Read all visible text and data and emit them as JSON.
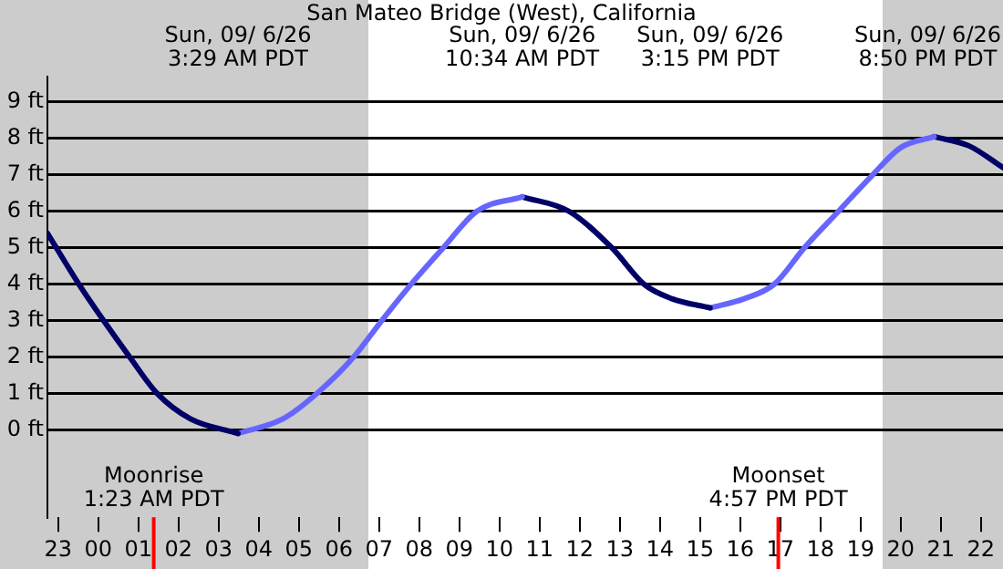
{
  "chart_data": {
    "type": "line",
    "title": "San Mateo Bridge (West), California",
    "xlim": [
      "--09-05T22:44",
      "--09-06T22:33"
    ],
    "ylim": [
      -2.4,
      9.7
    ],
    "xticks": [
      {
        "value": "--09-05T23:00",
        "label": "23"
      },
      {
        "value": "--09-06T00:00",
        "label": "00"
      },
      {
        "value": "--09-06T01:00",
        "label": "01"
      },
      {
        "value": "--09-06T02:00",
        "label": "02"
      },
      {
        "value": "--09-06T03:00",
        "label": "03"
      },
      {
        "value": "--09-06T04:00",
        "label": "04"
      },
      {
        "value": "--09-06T05:00",
        "label": "05"
      },
      {
        "value": "--09-06T06:00",
        "label": "06"
      },
      {
        "value": "--09-06T07:00",
        "label": "07"
      },
      {
        "value": "--09-06T08:00",
        "label": "08"
      },
      {
        "value": "--09-06T09:00",
        "label": "09"
      },
      {
        "value": "--09-06T10:00",
        "label": "10"
      },
      {
        "value": "--09-06T11:00",
        "label": "11"
      },
      {
        "value": "--09-06T12:00",
        "label": "12"
      },
      {
        "value": "--09-06T13:00",
        "label": "13"
      },
      {
        "value": "--09-06T14:00",
        "label": "14"
      },
      {
        "value": "--09-06T15:00",
        "label": "15"
      },
      {
        "value": "--09-06T16:00",
        "label": "16"
      },
      {
        "value": "--09-06T17:00",
        "label": "17"
      },
      {
        "value": "--09-06T18:00",
        "label": "18"
      },
      {
        "value": "--09-06T19:00",
        "label": "19"
      },
      {
        "value": "--09-06T20:00",
        "label": "20"
      },
      {
        "value": "--09-06T21:00",
        "label": "21"
      },
      {
        "value": "--09-06T22:00",
        "label": "22"
      }
    ],
    "yticks": [
      {
        "value": 0,
        "label": "0 ft"
      },
      {
        "value": 1,
        "label": "1 ft"
      },
      {
        "value": 2,
        "label": "2 ft"
      },
      {
        "value": 3,
        "label": "3 ft"
      },
      {
        "value": 4,
        "label": "4 ft"
      },
      {
        "value": 5,
        "label": "5 ft"
      },
      {
        "value": 6,
        "label": "6 ft"
      },
      {
        "value": 7,
        "label": "7 ft"
      },
      {
        "value": 8,
        "label": "8 ft"
      },
      {
        "value": 9,
        "label": "9 ft"
      }
    ],
    "grid": "y",
    "legend": false,
    "series": [
      {
        "color": "#000066",
        "x": [
          "--09-05T22:44",
          "--09-05T23:31",
          "--09-06T00:08",
          "--09-06T00:47",
          "--09-06T01:28",
          "--09-06T02:18",
          "--09-06T03:29"
        ],
        "values": [
          5.4,
          4,
          3,
          2,
          1,
          0.3,
          -0.1
        ]
      },
      {
        "color": "#6666ff",
        "x": [
          "--09-06T03:29",
          "--09-06T04:36",
          "--09-06T05:27",
          "--09-06T06:22",
          "--09-06T07:04",
          "--09-06T07:48",
          "--09-06T08:36",
          "--09-06T09:26",
          "--09-06T10:34"
        ],
        "values": [
          -0.1,
          0.3,
          1,
          2,
          3,
          4,
          5,
          6,
          6.4
        ]
      },
      {
        "color": "#000066",
        "x": [
          "--09-06T10:34",
          "--09-06T11:44",
          "--09-06T12:48",
          "--09-06T13:36",
          "--09-06T14:18",
          "--09-06T15:15"
        ],
        "values": [
          6.4,
          6,
          5,
          4,
          3.6,
          3.35
        ]
      },
      {
        "color": "#6666ff",
        "x": [
          "--09-06T15:15",
          "--09-06T16:06",
          "--09-06T16:51",
          "--09-06T17:36",
          "--09-06T18:27",
          "--09-06T19:18",
          "--09-06T20:00",
          "--09-06T20:50"
        ],
        "values": [
          3.35,
          3.6,
          4,
          5,
          6,
          7,
          7.75,
          8.05
        ]
      },
      {
        "color": "#000066",
        "x": [
          "--09-06T20:50",
          "--09-06T21:42",
          "--09-06T22:33"
        ],
        "values": [
          8.05,
          7.8,
          7.2
        ]
      }
    ],
    "bands": [
      {
        "axis": "x",
        "from": "--09-05T22:44",
        "to": "--09-06T06:44",
        "color": "#cccccc"
      },
      {
        "axis": "x",
        "from": "--09-06T19:33",
        "to": "--09-06T22:33",
        "color": "#cccccc"
      }
    ],
    "ref_lines": [
      {
        "axis": "x",
        "value": "--09-06T01:23",
        "label": "Moonrise\n1:23 AM PDT",
        "color": "#ff0000"
      },
      {
        "axis": "x",
        "value": "--09-06T16:57",
        "label": "Moonset\n4:57 PM PDT",
        "color": "#ff0000"
      }
    ],
    "annotations": [
      "Sun, 09/ 6/26\n3:29 AM PDT",
      "Sun, 09/ 6/26\n10:34 AM PDT",
      "Sun, 09/ 6/26\n3:15 PM PDT",
      "Sun, 09/ 6/26\n8:50 PM PDT"
    ]
  }
}
